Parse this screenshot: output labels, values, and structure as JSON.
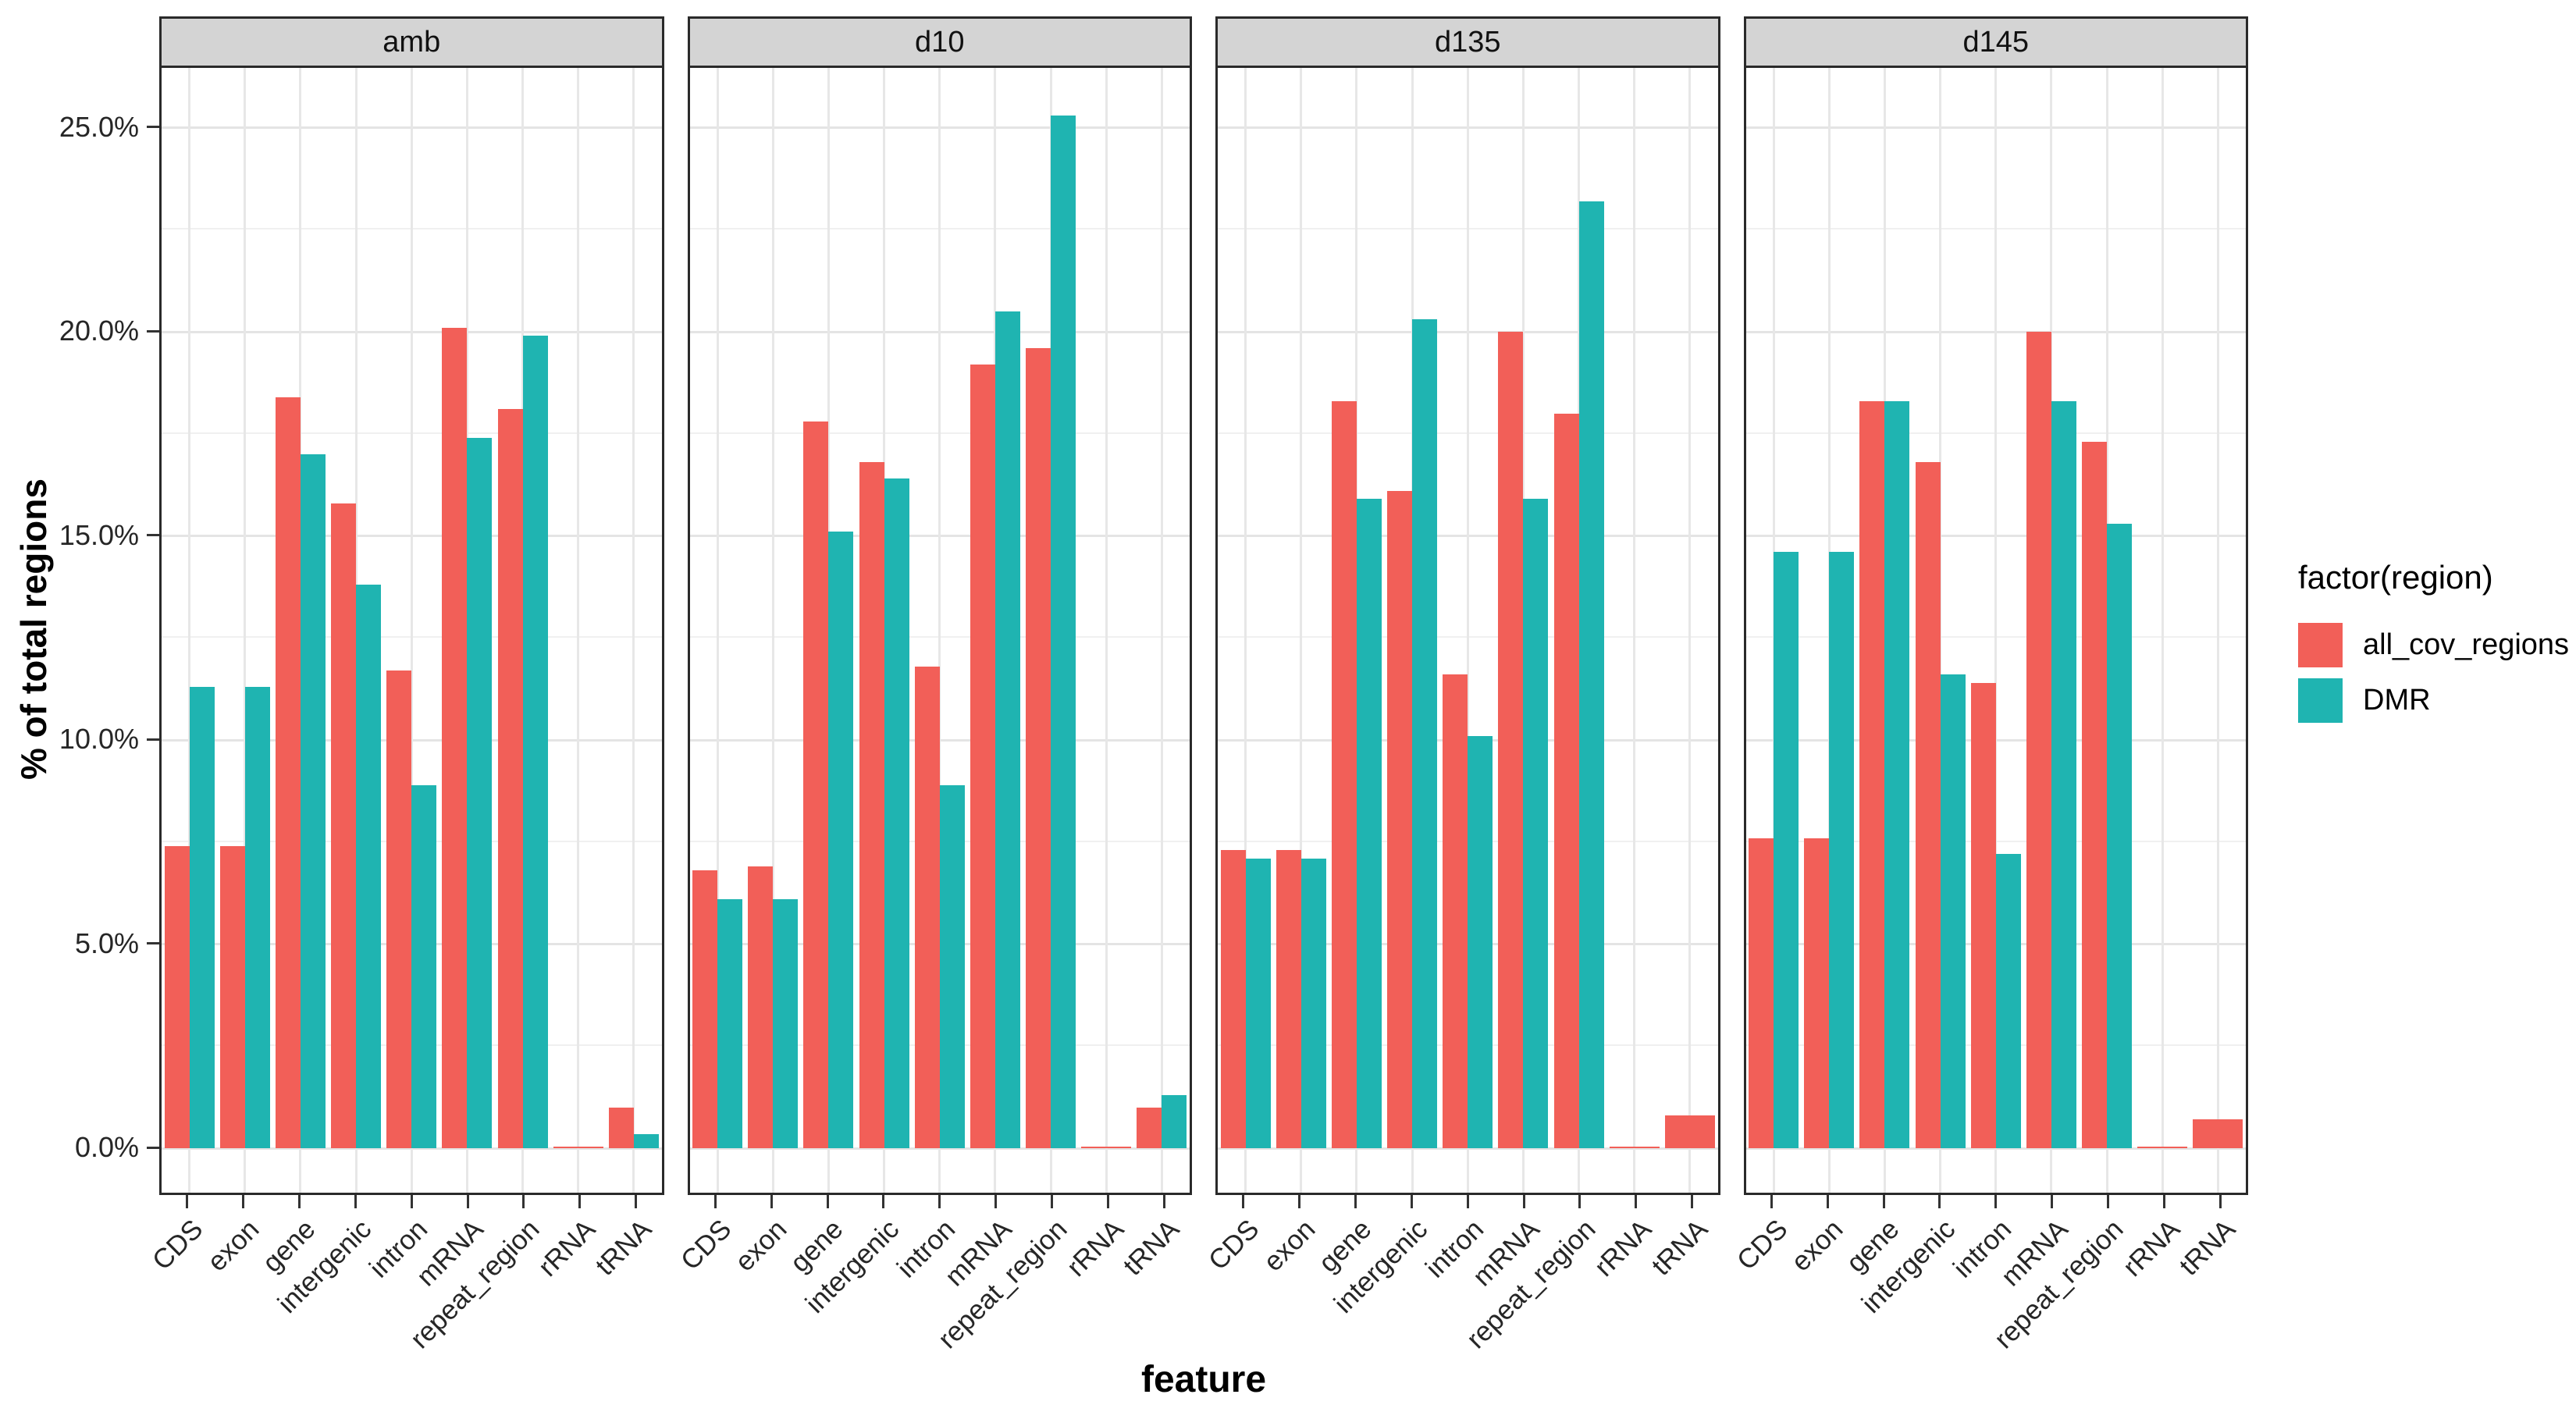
{
  "y_axis": {
    "title": "% of total regions",
    "ticks": [
      {
        "label": "0.0%",
        "value": 0
      },
      {
        "label": "5.0%",
        "value": 5
      },
      {
        "label": "10.0%",
        "value": 10
      },
      {
        "label": "15.0%",
        "value": 15
      },
      {
        "label": "20.0%",
        "value": 20
      },
      {
        "label": "25.0%",
        "value": 25
      }
    ]
  },
  "x_axis": {
    "title": "feature"
  },
  "legend": {
    "title": "factor(region)",
    "items": [
      {
        "label": "all_cov_regions",
        "color": "#F25F58"
      },
      {
        "label": "DMR",
        "color": "#1FB4B1"
      }
    ]
  },
  "colors": {
    "all_cov_regions": "#F25F58",
    "DMR": "#1FB4B1",
    "strip_background": "#d4d4d4",
    "panel_border": "#2a2a2a",
    "gridline_major": "#e4e4e4",
    "gridline_minor": "#f0f0f0"
  },
  "chart_data": {
    "type": "bar",
    "title": "",
    "xlabel": "feature",
    "ylabel": "% of total regions",
    "ylim": [
      0,
      26.5
    ],
    "y_major_ticks": [
      0,
      5,
      10,
      15,
      20,
      25
    ],
    "y_minor_ticks": [
      2.5,
      7.5,
      12.5,
      17.5,
      22.5
    ],
    "grid": true,
    "legend_position": "right",
    "legend_title": "factor(region)",
    "categories": [
      "CDS",
      "exon",
      "gene",
      "intergenic",
      "intron",
      "mRNA",
      "repeat_region",
      "rRNA",
      "tRNA"
    ],
    "series_names": [
      "all_cov_regions",
      "DMR"
    ],
    "facets": [
      {
        "label": "amb",
        "series": [
          {
            "name": "all_cov_regions",
            "values": [
              7.4,
              7.4,
              18.4,
              15.8,
              11.7,
              20.1,
              18.1,
              0.03,
              1.0
            ]
          },
          {
            "name": "DMR",
            "values": [
              11.3,
              11.3,
              17.0,
              13.8,
              8.9,
              17.4,
              19.9,
              null,
              0.35
            ]
          }
        ]
      },
      {
        "label": "d10",
        "series": [
          {
            "name": "all_cov_regions",
            "values": [
              6.8,
              6.9,
              17.8,
              16.8,
              11.8,
              19.2,
              19.6,
              0.03,
              1.0
            ]
          },
          {
            "name": "DMR",
            "values": [
              6.1,
              6.1,
              15.1,
              16.4,
              8.9,
              20.5,
              25.3,
              null,
              1.3
            ]
          }
        ]
      },
      {
        "label": "d135",
        "series": [
          {
            "name": "all_cov_regions",
            "values": [
              7.3,
              7.3,
              18.3,
              16.1,
              11.6,
              20.0,
              18.0,
              0.03,
              0.8
            ]
          },
          {
            "name": "DMR",
            "values": [
              7.1,
              7.1,
              15.9,
              20.3,
              10.1,
              15.9,
              23.2,
              null,
              null
            ]
          }
        ]
      },
      {
        "label": "d145",
        "series": [
          {
            "name": "all_cov_regions",
            "values": [
              7.6,
              7.6,
              18.3,
              16.8,
              11.4,
              20.0,
              17.3,
              0.03,
              0.7
            ]
          },
          {
            "name": "DMR",
            "values": [
              14.6,
              14.6,
              18.3,
              11.6,
              7.2,
              18.3,
              15.3,
              null,
              null
            ]
          }
        ]
      }
    ]
  }
}
